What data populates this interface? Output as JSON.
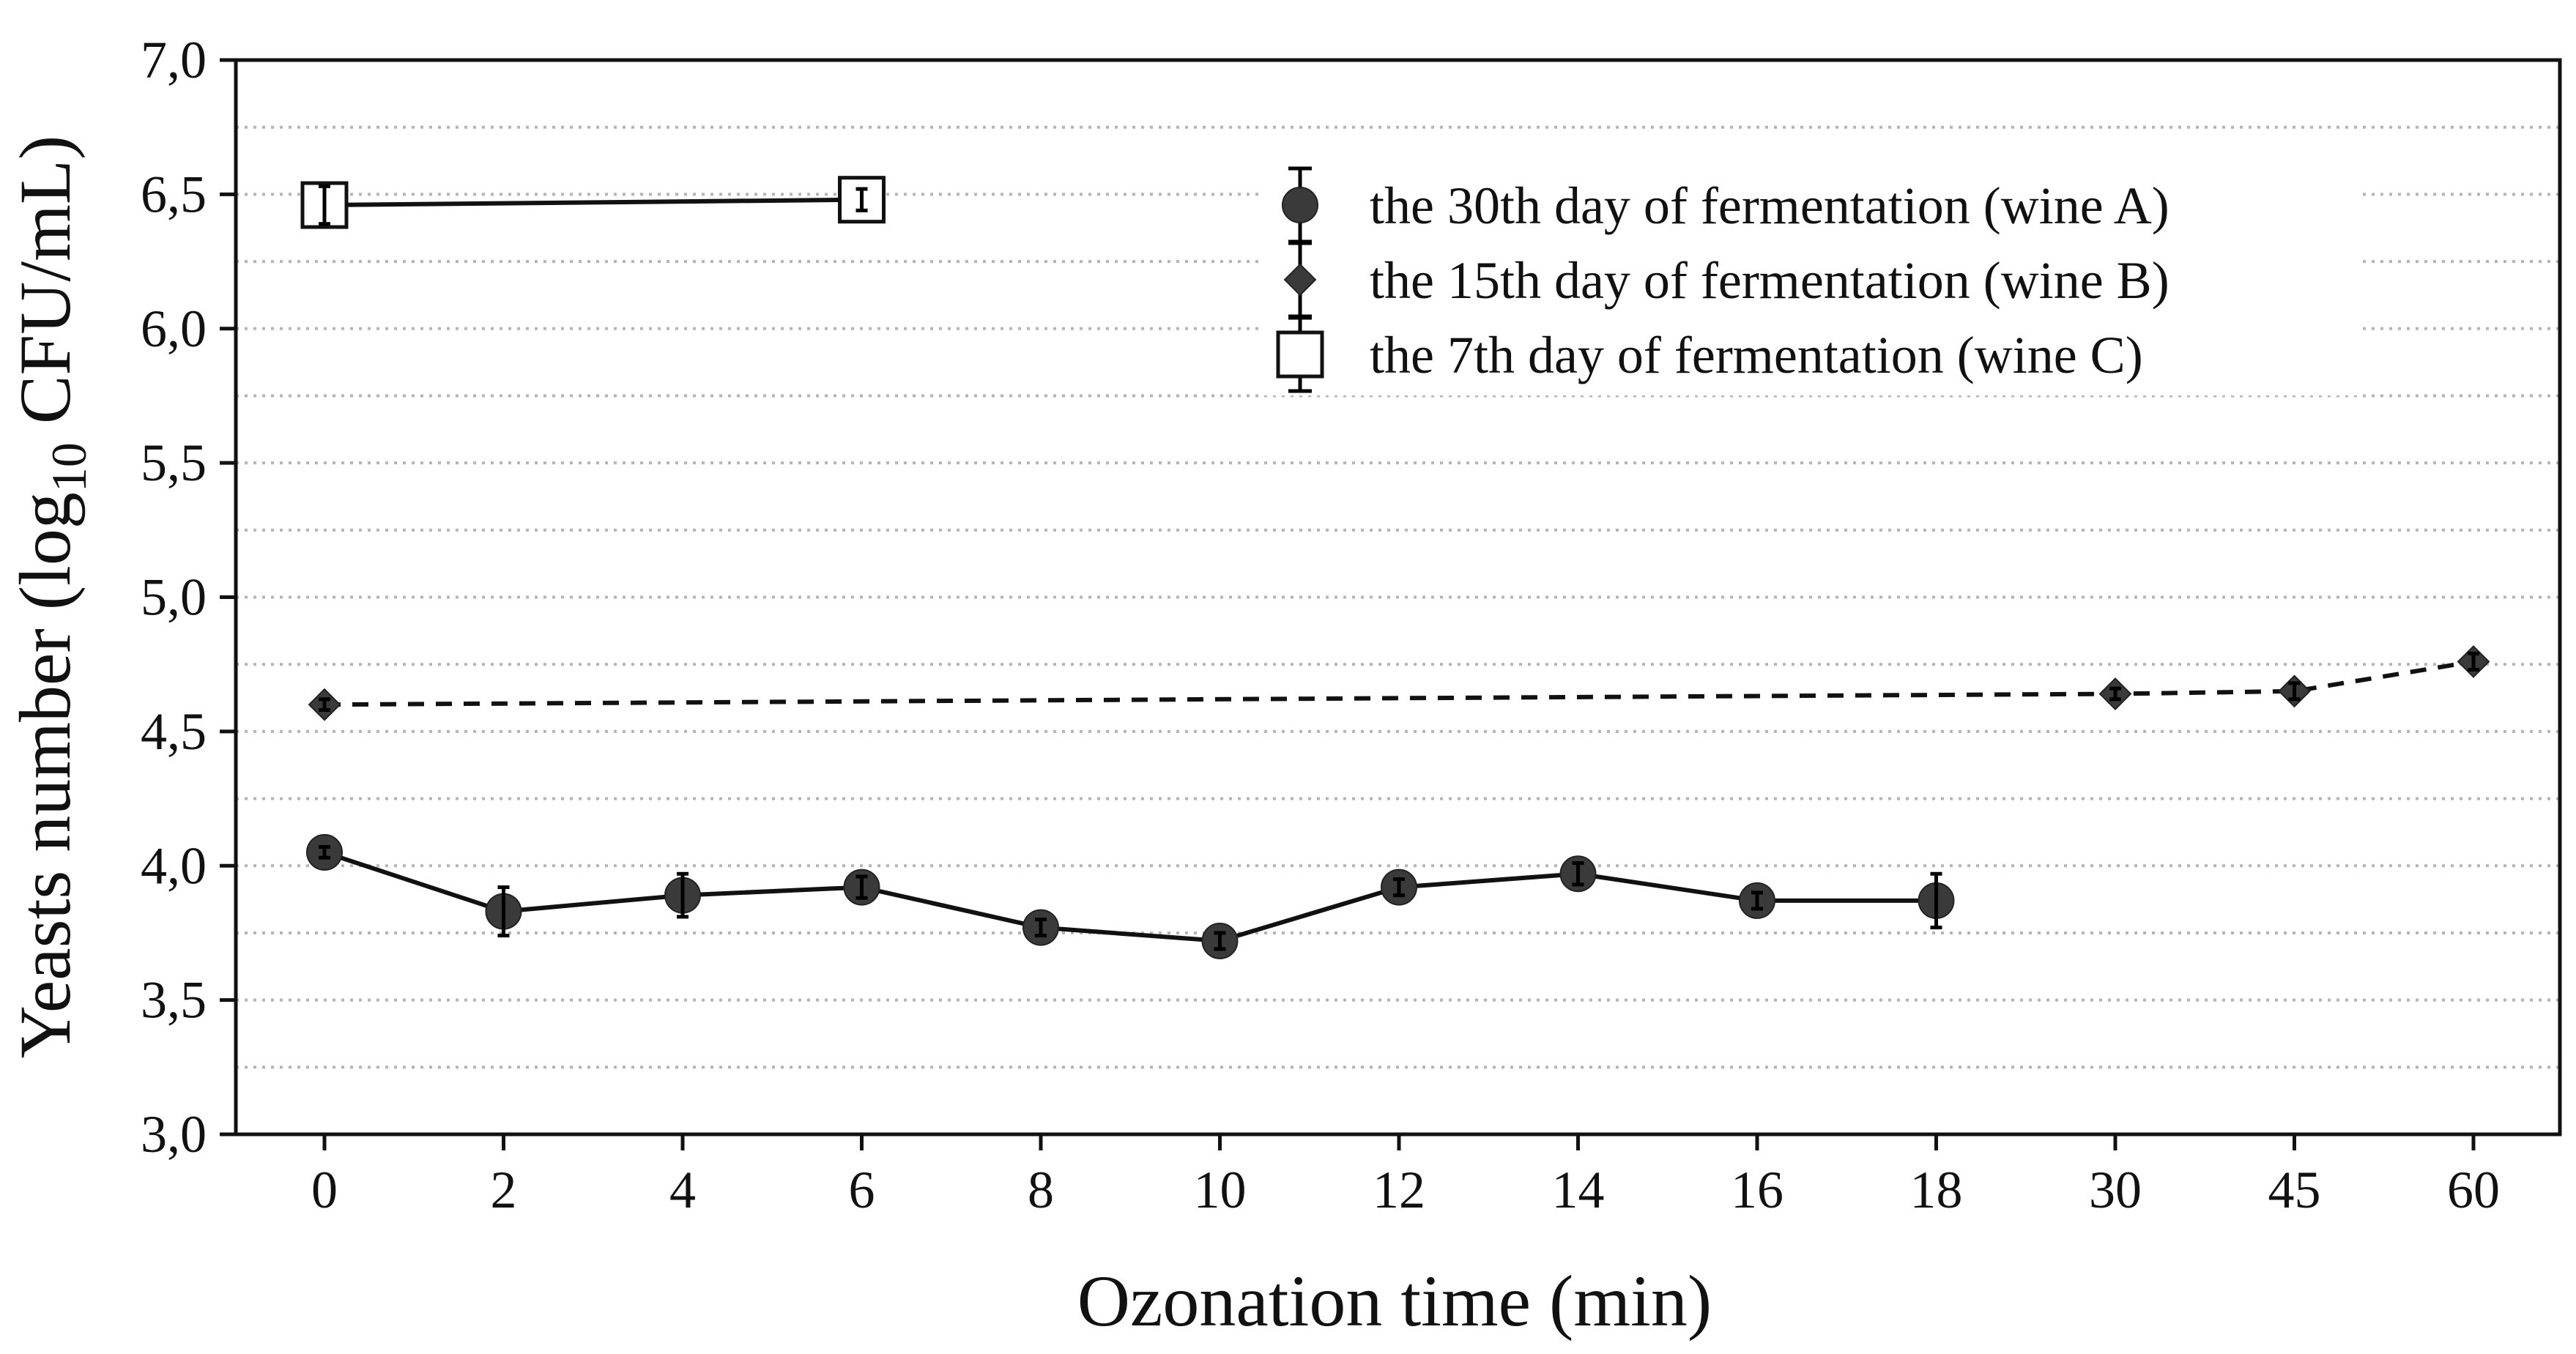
{
  "chart_data": {
    "type": "line",
    "title": "",
    "xlabel": "Ozonation time (min)",
    "ylabel_main": "Yeasts number (log",
    "ylabel_sub": "10",
    "ylabel_tail": " CFU/mL)",
    "categories": [
      "0",
      "2",
      "4",
      "6",
      "8",
      "10",
      "12",
      "14",
      "16",
      "18",
      "30",
      "45",
      "60"
    ],
    "y_ticks": [
      "3,0",
      "3,5",
      "4,0",
      "4,5",
      "5,0",
      "5,5",
      "6,0",
      "6,5",
      "7,0"
    ],
    "ylim": [
      3.0,
      7.0
    ],
    "grid": "horizontal dotted",
    "legend_position": "top-right",
    "series": [
      {
        "name": "the 30th day of fermentation (wine A)",
        "marker": "circle",
        "line": "solid",
        "color": "#3a3a3a",
        "x": [
          "0",
          "2",
          "4",
          "6",
          "8",
          "10",
          "12",
          "14",
          "16",
          "18"
        ],
        "values": [
          4.05,
          3.83,
          3.89,
          3.92,
          3.77,
          3.72,
          3.92,
          3.97,
          3.87,
          3.87
        ],
        "errors": [
          0.02,
          0.09,
          0.08,
          0.04,
          0.03,
          0.03,
          0.03,
          0.04,
          0.03,
          0.1
        ]
      },
      {
        "name": "the 15th day of fermentation (wine B)",
        "marker": "diamond",
        "line": "dashed",
        "color": "#3a3a3a",
        "x": [
          "0",
          "30",
          "45",
          "60"
        ],
        "values": [
          4.6,
          4.64,
          4.65,
          4.76
        ],
        "errors": [
          0.02,
          0.02,
          0.03,
          0.03
        ]
      },
      {
        "name": "the 7th day of fermentation (wine C)",
        "marker": "square-open",
        "line": "solid",
        "color": "#111111",
        "x": [
          "0",
          "6"
        ],
        "values": [
          6.46,
          6.48
        ],
        "errors": [
          0.07,
          0.04
        ]
      }
    ]
  }
}
